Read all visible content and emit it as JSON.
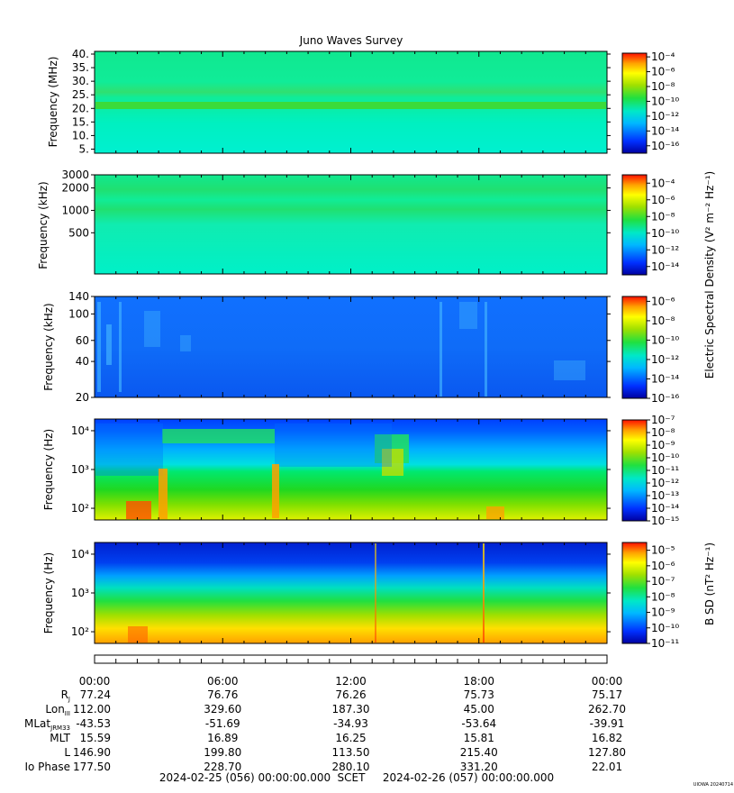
{
  "title": "Juno Waves Survey",
  "footer_id": "UIOWA 20240714",
  "ylabel_e": "Electric Spectral Density (V² m⁻² Hz⁻¹)",
  "ylabel_b": "B SD (nT² Hz⁻¹)",
  "chart_data": [
    {
      "type": "heatmap",
      "panel": "HFR high",
      "ylabel": "Frequency (MHz)",
      "yscale": "linear",
      "ylim": [
        3.5,
        41
      ],
      "yticks": [
        "40.",
        "35.",
        "30.",
        "25.",
        "20.",
        "15.",
        "10.",
        "5."
      ],
      "ytick_values": [
        40,
        35,
        30,
        25,
        20,
        15,
        10,
        5
      ],
      "colorbar_ticks": [
        "10⁻⁴",
        "10⁻⁶",
        "10⁻⁸",
        "10⁻¹⁰",
        "10⁻¹²",
        "10⁻¹⁴",
        "10⁻¹⁶"
      ],
      "colorbar_range_log10": [
        -17,
        -3.5
      ],
      "colors": [
        "#0000a0",
        "#0040ff",
        "#00b8ff",
        "#00e8d0",
        "#20e060",
        "#80e020",
        "#ffff00",
        "#ffa000",
        "#ff2000"
      ]
    },
    {
      "type": "heatmap",
      "panel": "HFR low",
      "ylabel": "Frequency (kHz)",
      "yscale": "log",
      "ylim": [
        140,
        3000
      ],
      "yticks": [
        "3000",
        "2000",
        "1000",
        "500"
      ],
      "ytick_values": [
        3000,
        2000,
        1000,
        500
      ],
      "colorbar_ticks": [
        "10⁻⁴",
        "10⁻⁶",
        "10⁻⁸",
        "10⁻¹⁰",
        "10⁻¹²",
        "10⁻¹⁴"
      ],
      "colorbar_range_log10": [
        -15,
        -3
      ]
    },
    {
      "type": "heatmap",
      "panel": "LFR high",
      "ylabel": "Frequency (kHz)",
      "yscale": "log",
      "ylim": [
        20,
        140
      ],
      "yticks": [
        "140",
        "100",
        "60",
        "40",
        "20"
      ],
      "ytick_values": [
        140,
        100,
        60,
        40,
        20
      ],
      "colorbar_ticks": [
        "10⁻⁶",
        "10⁻⁸",
        "10⁻¹⁰",
        "10⁻¹²",
        "10⁻¹⁴",
        "10⁻¹⁶"
      ],
      "colorbar_range_log10": [
        -16,
        -5.5
      ]
    },
    {
      "type": "heatmap",
      "panel": "LFR E",
      "ylabel": "Frequency (Hz)",
      "yscale": "log",
      "ylim": [
        50,
        20000
      ],
      "yticks": [
        "10⁴",
        "10³",
        "10²"
      ],
      "ytick_values": [
        10000,
        1000,
        100
      ],
      "colorbar_ticks": [
        "10⁻⁷",
        "10⁻⁸",
        "10⁻⁹",
        "10⁻¹⁰",
        "10⁻¹¹",
        "10⁻¹²",
        "10⁻¹³",
        "10⁻¹⁴",
        "10⁻¹⁵"
      ],
      "colorbar_range_log10": [
        -15,
        -7
      ]
    },
    {
      "type": "heatmap",
      "panel": "LFR B",
      "ylabel": "Frequency (Hz)",
      "yscale": "log",
      "ylim": [
        50,
        20000
      ],
      "yticks": [
        "10⁴",
        "10³",
        "10²"
      ],
      "ytick_values": [
        10000,
        1000,
        100
      ],
      "colorbar_ticks": [
        "10⁻⁵",
        "10⁻⁶",
        "10⁻⁷",
        "10⁻⁸",
        "10⁻⁹",
        "10⁻¹⁰",
        "10⁻¹¹"
      ],
      "colorbar_range_log10": [
        -11,
        -4.5
      ]
    }
  ],
  "time_axis": {
    "tick_labels": [
      "00:00",
      "06:00",
      "12:00",
      "18:00",
      "00:00"
    ],
    "tick_hours": [
      0,
      6,
      12,
      18,
      24
    ],
    "minor_hours": [
      1,
      2,
      3,
      4,
      5,
      7,
      8,
      9,
      10,
      11,
      13,
      14,
      15,
      16,
      17,
      19,
      20,
      21,
      22,
      23
    ],
    "range_hours": [
      0,
      24
    ]
  },
  "ephemeris": {
    "rows": [
      {
        "label": "R",
        "sub": "J",
        "values": [
          "77.24",
          "76.76",
          "76.26",
          "75.73",
          "75.17"
        ]
      },
      {
        "label": "Lon",
        "sub": "III",
        "values": [
          "112.00",
          "329.60",
          "187.30",
          "45.00",
          "262.70"
        ]
      },
      {
        "label": "MLat",
        "sub": "JRM33",
        "values": [
          "-43.53",
          "-51.69",
          "-34.93",
          "-53.64",
          "-39.91"
        ]
      },
      {
        "label": "MLT",
        "sub": "",
        "values": [
          "15.59",
          "16.89",
          "16.25",
          "15.81",
          "16.82"
        ]
      },
      {
        "label": "L",
        "sub": "",
        "values": [
          "146.90",
          "199.80",
          "113.50",
          "215.40",
          "127.80"
        ]
      },
      {
        "label": "Io Phase",
        "sub": "",
        "values": [
          "177.50",
          "228.70",
          "280.10",
          "331.20",
          "22.01"
        ]
      }
    ],
    "footer_start": "2024-02-25 (056) 00:00:00.000",
    "footer_mid": "SCET",
    "footer_end": "2024-02-26 (057) 00:00:00.000"
  }
}
